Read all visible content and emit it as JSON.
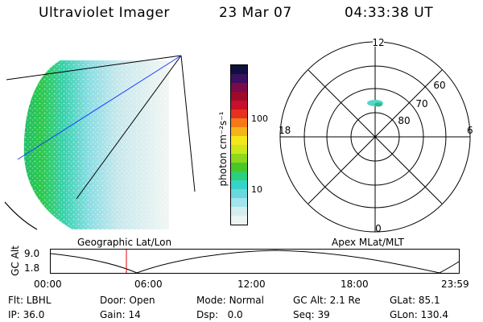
{
  "header": {
    "title": "Ultraviolet Imager",
    "date": "23 Mar 07",
    "time": "04:33:38 UT"
  },
  "colorbar": {
    "label": "photon cm⁻²s⁻¹",
    "ticks": [
      "100",
      "10"
    ],
    "colors": [
      "#101040",
      "#3a1060",
      "#7a0a4a",
      "#a00a2a",
      "#c8102a",
      "#e83020",
      "#f47a18",
      "#f4b41a",
      "#f4e81a",
      "#cce81a",
      "#8ed81a",
      "#48c828",
      "#2ad07a",
      "#36d4c8",
      "#6ad8e0",
      "#a4e4ec",
      "#d4eef0",
      "#eef4f2"
    ]
  },
  "polar": {
    "mlt_labels": {
      "top": "12",
      "bottom": "0",
      "left": "18",
      "right": "6"
    },
    "lat_labels": [
      "60",
      "70",
      "80"
    ]
  },
  "orbit": {
    "ylabel": "GC Alt",
    "y_ticks": [
      "9.0",
      "1.8"
    ],
    "left_title": "Geographic Lat/Lon",
    "right_title": "Apex MLat/MLT",
    "x_ticks": [
      "00:00",
      "06:00",
      "12:00",
      "18:00",
      "23:59"
    ]
  },
  "info": {
    "row1": [
      {
        "key": "Flt:",
        "value": "LBHL"
      },
      {
        "key": "Door:",
        "value": "Open"
      },
      {
        "key": "Mode:",
        "value": "Normal"
      },
      {
        "key": "GC Alt:",
        "value": "2.1 Re"
      },
      {
        "key": "GLat:",
        "value": "85.1"
      }
    ],
    "row2": [
      {
        "key": "IP:",
        "value": "36.0"
      },
      {
        "key": "Gain:",
        "value": "14"
      },
      {
        "key": "Dsp:",
        "value": "0.0"
      },
      {
        "key": "Seq:",
        "value": "39"
      },
      {
        "key": "GLon:",
        "value": "130.4"
      }
    ]
  }
}
